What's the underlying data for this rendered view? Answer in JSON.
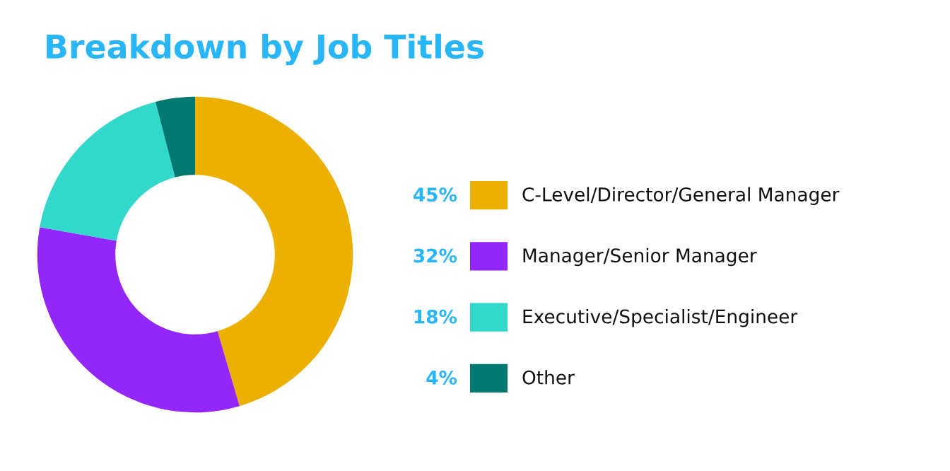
{
  "chart_data": {
    "type": "donut",
    "title": "Breakdown by Job Titles",
    "categories": [
      "C-Level/Director/General Manager",
      "Manager/Senior Manager",
      "Executive/Specialist/Engineer",
      "Other"
    ],
    "values": [
      45,
      32,
      18,
      4
    ],
    "value_labels": [
      "45%",
      "32%",
      "18%",
      "4%"
    ],
    "colors": [
      "#ecb100",
      "#9327fb",
      "#33d8cc",
      "#007a70"
    ],
    "legend": "right"
  }
}
